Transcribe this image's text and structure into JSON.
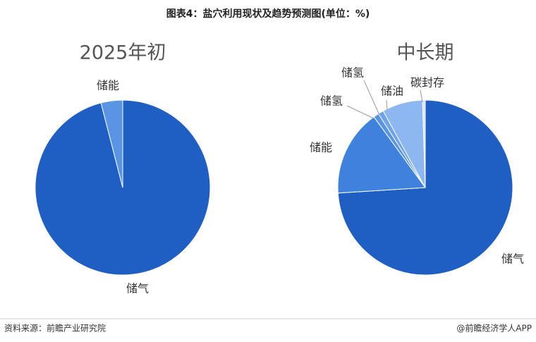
{
  "title": "图表4：盐穴利用现状及趋势预测图(单位：%)",
  "source": "资料来源：前瞻产业研究院",
  "brand": "@前瞻经济学人APP",
  "chart_data": [
    {
      "type": "pie",
      "title": "2025年初",
      "categories": [
        "储气",
        "储能"
      ],
      "values": [
        96,
        4
      ],
      "colors": [
        "#1f5fc4",
        "#5a95e3"
      ]
    },
    {
      "type": "pie",
      "title": "中长期",
      "categories": [
        "储气",
        "储能",
        "储氢",
        "储氢",
        "储油",
        "碳封存"
      ],
      "values": [
        74,
        16,
        1,
        1,
        7.5,
        0.5
      ],
      "colors": [
        "#1f5fc4",
        "#3f82dd",
        "#5a95e3",
        "#6fa3ea",
        "#8db7f0",
        "#d6e6fa"
      ]
    }
  ]
}
